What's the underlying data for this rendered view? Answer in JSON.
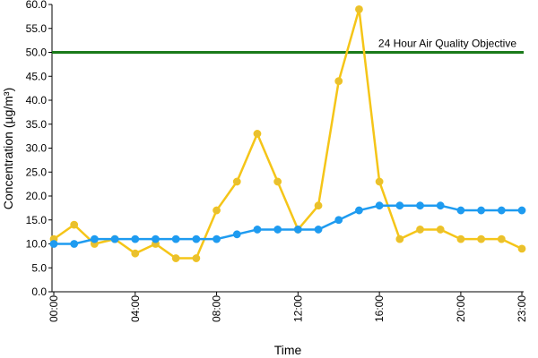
{
  "chart_data": {
    "type": "line",
    "title": "",
    "xlabel": "Time",
    "ylabel": "Concentration (µg/m³)",
    "ylim": [
      0,
      60
    ],
    "y_ticks": [
      "0.0",
      "5.0",
      "10.0",
      "15.0",
      "20.0",
      "25.0",
      "30.0",
      "35.0",
      "40.0",
      "45.0",
      "50.0",
      "55.0",
      "60.0"
    ],
    "x": [
      "00:00",
      "01:00",
      "02:00",
      "03:00",
      "04:00",
      "05:00",
      "06:00",
      "07:00",
      "08:00",
      "09:00",
      "10:00",
      "11:00",
      "12:00",
      "13:00",
      "14:00",
      "15:00",
      "16:00",
      "17:00",
      "18:00",
      "19:00",
      "20:00",
      "21:00",
      "22:00",
      "23:00"
    ],
    "x_tick_labels": [
      "00:00",
      "04:00",
      "08:00",
      "12:00",
      "16:00",
      "20:00",
      "23:00"
    ],
    "grid": false,
    "legend": "none",
    "series": [
      {
        "color": "#F5C518",
        "marker_color": "#E8C030",
        "values": [
          11,
          14,
          10,
          11,
          8,
          10,
          7,
          7,
          17,
          23,
          33,
          23,
          13,
          18,
          44,
          59,
          23,
          11,
          13,
          13,
          11,
          11,
          11,
          9
        ]
      },
      {
        "color": "#1E9BF0",
        "marker_color": "#1E9BF0",
        "values": [
          10,
          10,
          11,
          11,
          11,
          11,
          11,
          11,
          11,
          12,
          13,
          13,
          13,
          13,
          15,
          17,
          18,
          18,
          18,
          18,
          17,
          17,
          17,
          17
        ]
      }
    ],
    "reference_line": {
      "value": 50,
      "label": "24 Hour Air Quality Objective",
      "color": "#1A7A1A"
    }
  }
}
